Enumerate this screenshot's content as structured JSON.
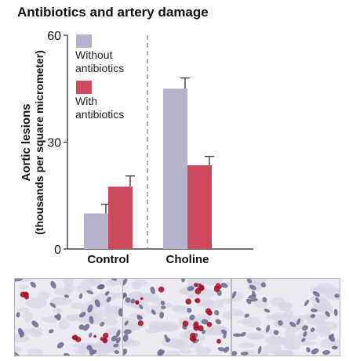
{
  "chart_data": {
    "type": "bar",
    "title": "Antibiotics and artery damage",
    "ylabel_lines": [
      "Aortic lesions",
      "(thousands per square micrometer)"
    ],
    "xlabel": "",
    "categories": [
      "Control",
      "Choline"
    ],
    "ylim": [
      0,
      60
    ],
    "yticks": [
      0,
      30,
      60
    ],
    "series": [
      {
        "name": "Without antibiotics",
        "name_lines": [
          "Without",
          "antibiotics"
        ],
        "color": "#b4b3cb",
        "values": [
          10,
          45
        ],
        "errors": [
          2.5,
          3
        ]
      },
      {
        "name": "With antibiotics",
        "name_lines": [
          "With",
          "antibiotics"
        ],
        "color": "#cd4a5c",
        "values": [
          17.5,
          23.5
        ],
        "errors": [
          3,
          2.5
        ]
      }
    ],
    "legend_position": "top-left",
    "divider": "dashed line between Control and Choline groups",
    "grid": false
  },
  "micrographs": [
    {
      "name": "control-micrograph",
      "stain_density": "low"
    },
    {
      "name": "choline-no-antibiotics-micrograph",
      "stain_density": "high"
    },
    {
      "name": "choline-antibiotics-micrograph",
      "stain_density": "none"
    }
  ],
  "colors": {
    "nucleus": "#6d6790",
    "lipid_stain": "#a8152a",
    "tissue_bg": "#eeeaf1"
  }
}
